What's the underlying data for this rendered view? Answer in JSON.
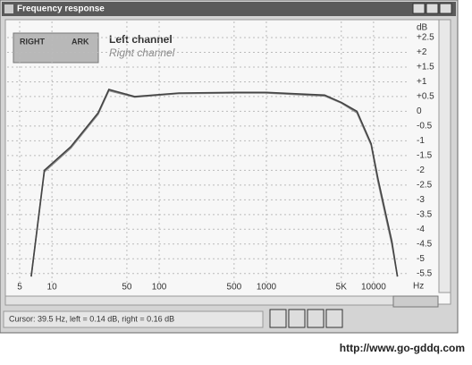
{
  "window": {
    "title": "Frequency response"
  },
  "legend_box": {
    "left": "RIGHT",
    "right": "ARK"
  },
  "chart_data": {
    "type": "line",
    "log_x": true,
    "grid": true,
    "x_unit": "Hz",
    "y_unit": "dB",
    "xlim": [
      5,
      20000
    ],
    "ylim": [
      -5.75,
      3
    ],
    "xticks": [
      5,
      10,
      50,
      100,
      500,
      1000,
      {
        "value": 5000,
        "label": "5K"
      },
      10000
    ],
    "yticks": [
      {
        "value": 2.5,
        "label": "+2.5"
      },
      {
        "value": 2,
        "label": "+2"
      },
      {
        "value": 1.5,
        "label": "+1.5"
      },
      {
        "value": 1,
        "label": "+1"
      },
      {
        "value": 0.5,
        "label": "+0.5"
      },
      0,
      -0.5,
      -1,
      -1.5,
      -2,
      -2.5,
      -3,
      -3.5,
      -4,
      -4.5,
      -5,
      -5.5
    ],
    "x": [
      6.4,
      8.5,
      15,
      27,
      34,
      59,
      153,
      500,
      1000,
      3500,
      5000,
      7000,
      9500,
      11000,
      14800,
      16700
    ],
    "series": [
      {
        "name": "Left channel",
        "color": "#444444",
        "values": [
          -5.6,
          -2.0,
          -1.2,
          -0.05,
          0.74,
          0.5,
          0.62,
          0.64,
          0.64,
          0.55,
          0.3,
          0,
          -1.1,
          -2.3,
          -4.4,
          -5.6
        ]
      },
      {
        "name": "Right channel",
        "color": "#8a8a8a",
        "values": [
          -5.6,
          -2.05,
          -1.25,
          -0.1,
          0.7,
          0.48,
          0.6,
          0.62,
          0.62,
          0.52,
          0.28,
          -0.05,
          -1.15,
          -2.4,
          -4.5,
          -5.6
        ]
      }
    ]
  },
  "status": "Cursor: 39.5 Hz, left = 0.14 dB, right = 0.16 dB",
  "watermark": "http://www.go-gddq.com"
}
